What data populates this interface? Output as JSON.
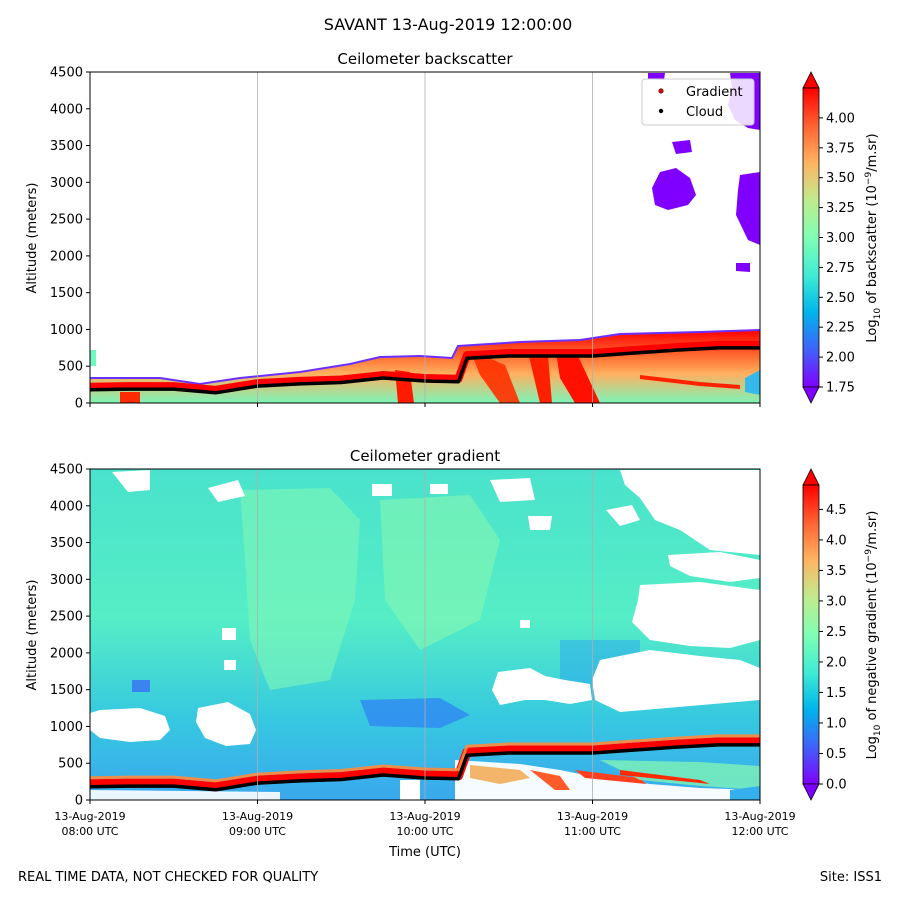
{
  "figure": {
    "suptitle": "SAVANT 13-Aug-2019 12:00:00",
    "footer_left": "REAL TIME DATA, NOT CHECKED FOR QUALITY",
    "footer_right": "Site: ISS1"
  },
  "chart_data": [
    {
      "type": "heatmap",
      "title": "Ceilometer backscatter",
      "ylabel": "Altitude (meters)",
      "xlabel": "",
      "ylim": [
        0,
        4500
      ],
      "yticks": [
        0,
        500,
        1000,
        1500,
        2000,
        2500,
        3000,
        3500,
        4000,
        4500
      ],
      "xlim_hours": [
        8,
        12
      ],
      "xtick_labels": [],
      "grid": "vertical lines at each hour",
      "colormap": "rainbow",
      "colorbar": {
        "label": "Log10 of backscatter (10^-9/m.sr)",
        "range": [
          1.75,
          4.25
        ],
        "ticks": [
          "1.75",
          "2.00",
          "2.25",
          "2.50",
          "2.75",
          "3.00",
          "3.25",
          "3.50",
          "3.75",
          "4.00"
        ],
        "extend": "both"
      },
      "legend": {
        "placement": "top-right",
        "entries": [
          {
            "label": "Gradient",
            "color": "#ff0000"
          },
          {
            "label": "Cloud",
            "color": "#000000"
          }
        ]
      },
      "boundary_layer_height_m": {
        "hours": [
          8.0,
          8.25,
          8.5,
          8.75,
          9.0,
          9.25,
          9.5,
          9.75,
          10.0,
          10.2,
          10.25,
          10.5,
          10.75,
          11.0,
          11.25,
          11.5,
          11.75,
          12.0
        ],
        "values": [
          220,
          230,
          230,
          180,
          270,
          300,
          320,
          380,
          340,
          330,
          650,
          680,
          680,
          680,
          720,
          760,
          790,
          790
        ]
      }
    },
    {
      "type": "heatmap",
      "title": "Ceilometer gradient",
      "ylabel": "Altitude (meters)",
      "xlabel": "Time (UTC)",
      "ylim": [
        0,
        4500
      ],
      "yticks": [
        0,
        500,
        1000,
        1500,
        2000,
        2500,
        3000,
        3500,
        4000,
        4500
      ],
      "xlim_hours": [
        8,
        12
      ],
      "xtick_labels": [
        {
          "date": "13-Aug-2019",
          "time": "08:00 UTC"
        },
        {
          "date": "13-Aug-2019",
          "time": "09:00 UTC"
        },
        {
          "date": "13-Aug-2019",
          "time": "10:00 UTC"
        },
        {
          "date": "13-Aug-2019",
          "time": "11:00 UTC"
        },
        {
          "date": "13-Aug-2019",
          "time": "12:00 UTC"
        }
      ],
      "grid": "vertical lines at each hour",
      "colormap": "rainbow",
      "colorbar": {
        "label": "Log10 of negative gradient (10^-9/m.sr)",
        "range": [
          0.0,
          4.9
        ],
        "ticks": [
          "0.0",
          "0.5",
          "1.0",
          "1.5",
          "2.0",
          "2.5",
          "3.0",
          "3.5",
          "4.0",
          "4.5"
        ],
        "extend": "both"
      },
      "boundary_layer_height_m": {
        "hours": [
          8.0,
          8.25,
          8.5,
          8.75,
          9.0,
          9.25,
          9.5,
          9.75,
          10.0,
          10.2,
          10.25,
          10.5,
          10.75,
          11.0,
          11.25,
          11.5,
          11.75,
          12.0
        ],
        "values": [
          220,
          230,
          230,
          180,
          270,
          300,
          320,
          380,
          340,
          330,
          650,
          680,
          680,
          680,
          720,
          760,
          790,
          790
        ]
      }
    }
  ]
}
